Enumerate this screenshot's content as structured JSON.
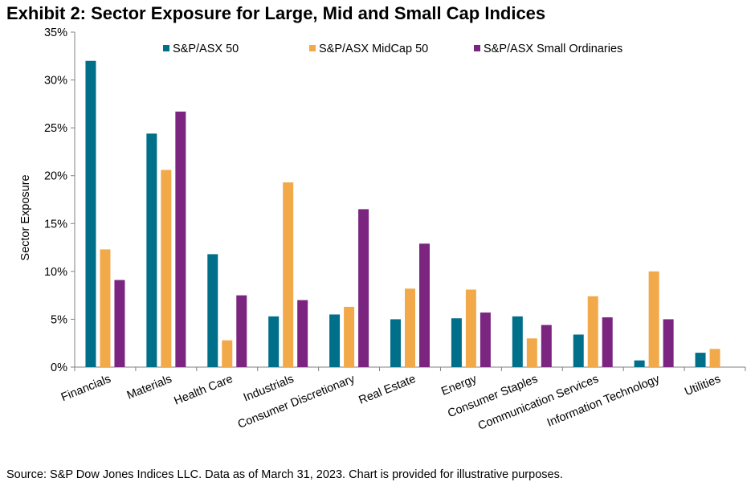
{
  "title": "Exhibit 2: Sector Exposure for Large, Mid and Small Cap Indices",
  "source": "Source: S&P Dow Jones Indices LLC. Data as of March 31, 2023. Chart is provided for illustrative purposes.",
  "chart_data": {
    "type": "bar",
    "title": "Exhibit 2: Sector Exposure for Large, Mid and Small Cap Indices",
    "xlabel": "",
    "ylabel": "Sector Exposure",
    "ylim": [
      0,
      35
    ],
    "yticks": [
      0,
      5,
      10,
      15,
      20,
      25,
      30,
      35
    ],
    "ytick_labels": [
      "0%",
      "5%",
      "10%",
      "15%",
      "20%",
      "25%",
      "30%",
      "35%"
    ],
    "grid": false,
    "legend": "top",
    "categories": [
      "Financials",
      "Materials",
      "Health Care",
      "Industrials",
      "Consumer Discretionary",
      "Real Estate",
      "Energy",
      "Consumer Staples",
      "Communication Services",
      "Information Technology",
      "Utilities"
    ],
    "series": [
      {
        "name": "S&P/ASX 50",
        "color": "#006F8A",
        "values": [
          32.0,
          24.4,
          11.8,
          5.3,
          5.5,
          5.0,
          5.1,
          5.3,
          3.4,
          0.7,
          1.5
        ]
      },
      {
        "name": "S&P/ASX MidCap 50",
        "color": "#F2A94A",
        "values": [
          12.3,
          20.6,
          2.8,
          19.3,
          6.3,
          8.2,
          8.1,
          3.0,
          7.4,
          10.0,
          1.9
        ]
      },
      {
        "name": "S&P/ASX Small Ordinaries",
        "color": "#7B2480",
        "values": [
          9.1,
          26.7,
          7.5,
          7.0,
          16.5,
          12.9,
          5.7,
          4.4,
          5.2,
          5.0,
          0
        ]
      }
    ]
  }
}
